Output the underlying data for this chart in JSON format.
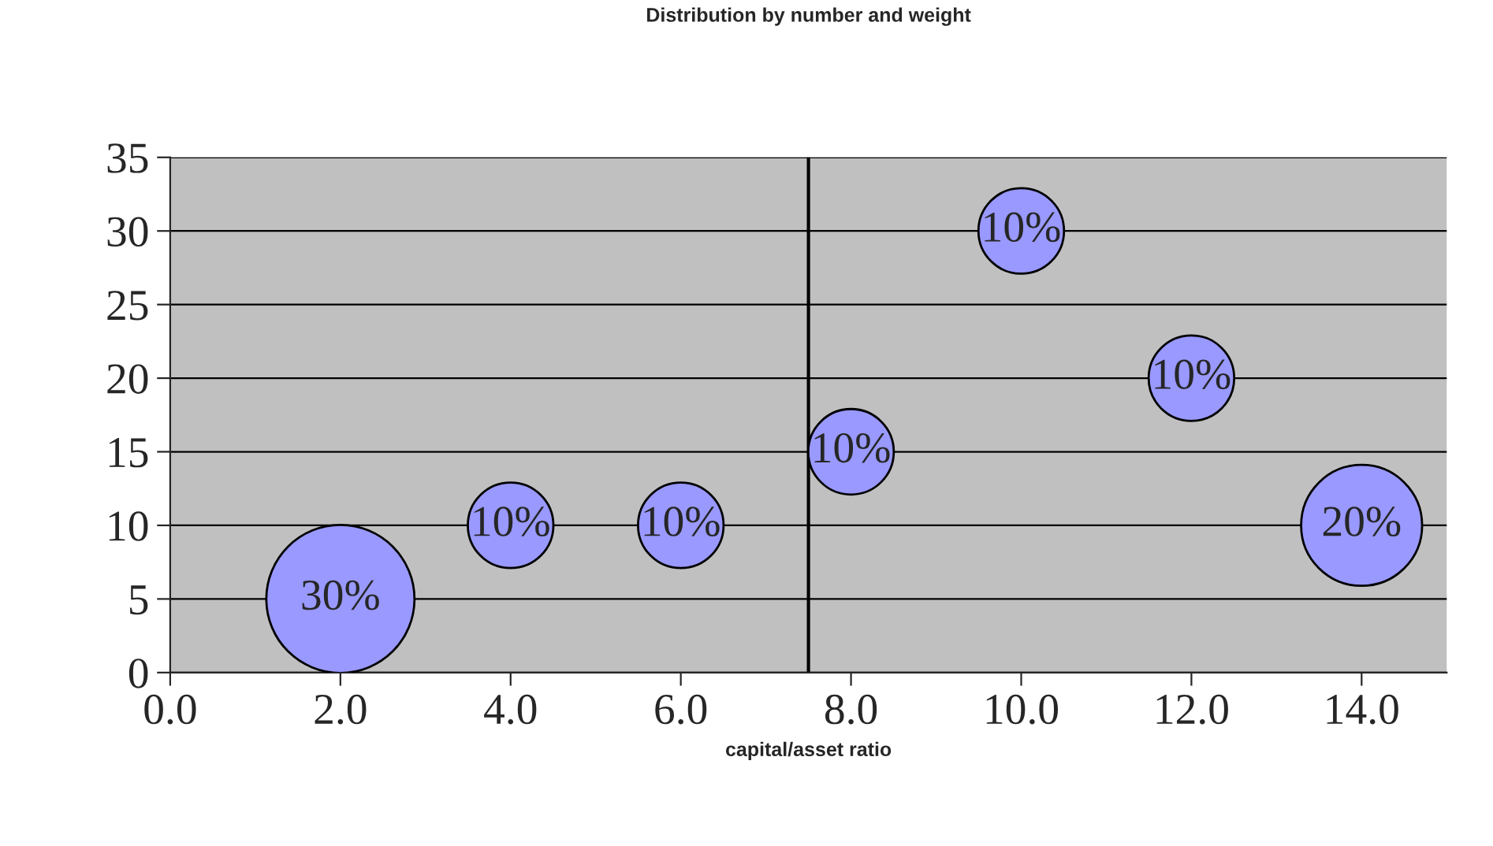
{
  "chart_data": {
    "type": "bubble",
    "title": "Distribution by number and weight",
    "xlabel": "capital/asset ratio",
    "x": [
      2,
      4,
      6,
      8,
      10,
      12,
      14
    ],
    "values": [
      5,
      10,
      10,
      15,
      30,
      20,
      10
    ],
    "sizes": [
      1,
      0.3333,
      0.3333,
      0.3333,
      0.3333,
      0.3333,
      0.6667
    ],
    "annotations": [
      {
        "text": "30%",
        "x": 2,
        "y": 5
      },
      {
        "text": "10%",
        "x": 4,
        "y": 10
      },
      {
        "text": "10%",
        "x": 6,
        "y": 10
      },
      {
        "text": "10%",
        "x": 8,
        "y": 15
      },
      {
        "text": "10%",
        "x": 10,
        "y": 30
      },
      {
        "text": "10%",
        "x": 12,
        "y": 20
      },
      {
        "text": "20%",
        "x": 14,
        "y": 10
      }
    ],
    "color": "#9999ff",
    "xlim": [
      0,
      15
    ],
    "xticks": [
      {
        "value": 0,
        "label": "0.0"
      },
      {
        "value": 2,
        "label": "2.0"
      },
      {
        "value": 4,
        "label": "4.0"
      },
      {
        "value": 6,
        "label": "6.0"
      },
      {
        "value": 8,
        "label": "8.0"
      },
      {
        "value": 10,
        "label": "10.0"
      },
      {
        "value": 12,
        "label": "12.0"
      },
      {
        "value": 14,
        "label": "14.0"
      }
    ],
    "ylim": [
      0,
      35
    ],
    "yticks": [
      0,
      5,
      10,
      15,
      20,
      25,
      30,
      35
    ],
    "ref_lines": [
      {
        "axis": "x",
        "value": 7.5,
        "color": "#000000"
      }
    ],
    "grid": "y",
    "legend": false
  }
}
